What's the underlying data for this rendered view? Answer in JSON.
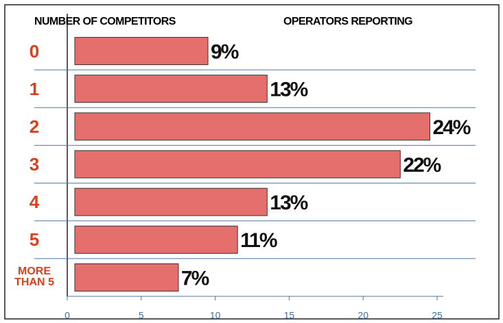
{
  "chart_data": {
    "type": "bar",
    "orientation": "horizontal",
    "category_axis_label": "NUMBER OF COMPETITORS",
    "value_axis_label": "OPERATORS REPORTING",
    "categories": [
      "0",
      "1",
      "2",
      "3",
      "4",
      "5",
      "MORE THAN 5"
    ],
    "values": [
      9,
      13,
      24,
      22,
      13,
      11,
      7
    ],
    "value_labels": [
      "9%",
      "13%",
      "24%",
      "22%",
      "13%",
      "11%",
      "7%"
    ],
    "color": "#e46f6d",
    "xlim": [
      0,
      25
    ],
    "xticks": [
      0,
      5,
      10,
      15,
      20,
      25
    ]
  }
}
